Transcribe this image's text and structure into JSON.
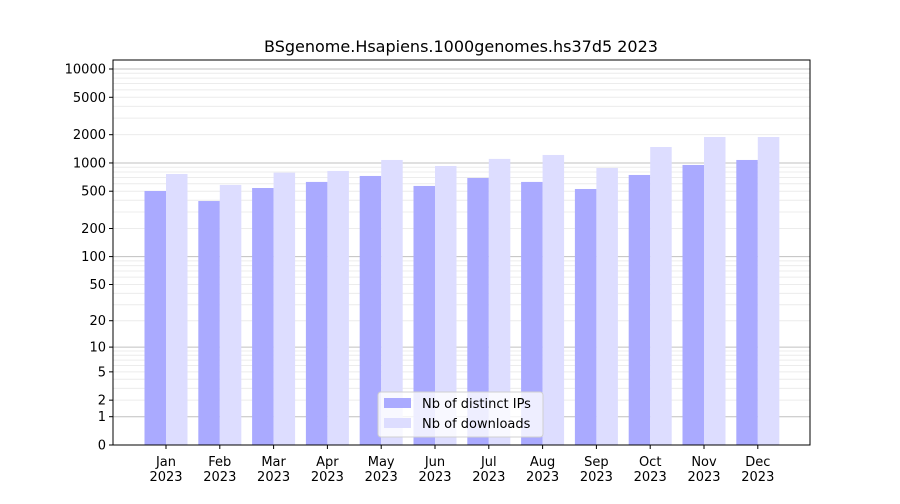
{
  "chart_data": {
    "type": "bar",
    "title": "BSgenome.Hsapiens.1000genomes.hs37d5 2023",
    "categories": [
      "Jan\n2023",
      "Feb\n2023",
      "Mar\n2023",
      "Apr\n2023",
      "May\n2023",
      "Jun\n2023",
      "Jul\n2023",
      "Aug\n2023",
      "Sep\n2023",
      "Oct\n2023",
      "Nov\n2023",
      "Dec\n2023"
    ],
    "series": [
      {
        "name": "Nb of distinct IPs",
        "color": "#aaaaff",
        "values": [
          503,
          393,
          541,
          628,
          727,
          569,
          692,
          628,
          528,
          745,
          952,
          1076
        ]
      },
      {
        "name": "Nb of downloads",
        "color": "#ddddff",
        "values": [
          763,
          583,
          788,
          822,
          1076,
          928,
          1104,
          1217,
          884,
          1479,
          1890,
          1890
        ]
      }
    ],
    "yscale": "log10(1+y)",
    "yticks": [
      0,
      1,
      2,
      5,
      10,
      20,
      50,
      100,
      200,
      500,
      1000,
      2000,
      5000,
      10000
    ],
    "ylim": [
      0,
      12500
    ],
    "grid": true,
    "legend": "bottom-center"
  }
}
